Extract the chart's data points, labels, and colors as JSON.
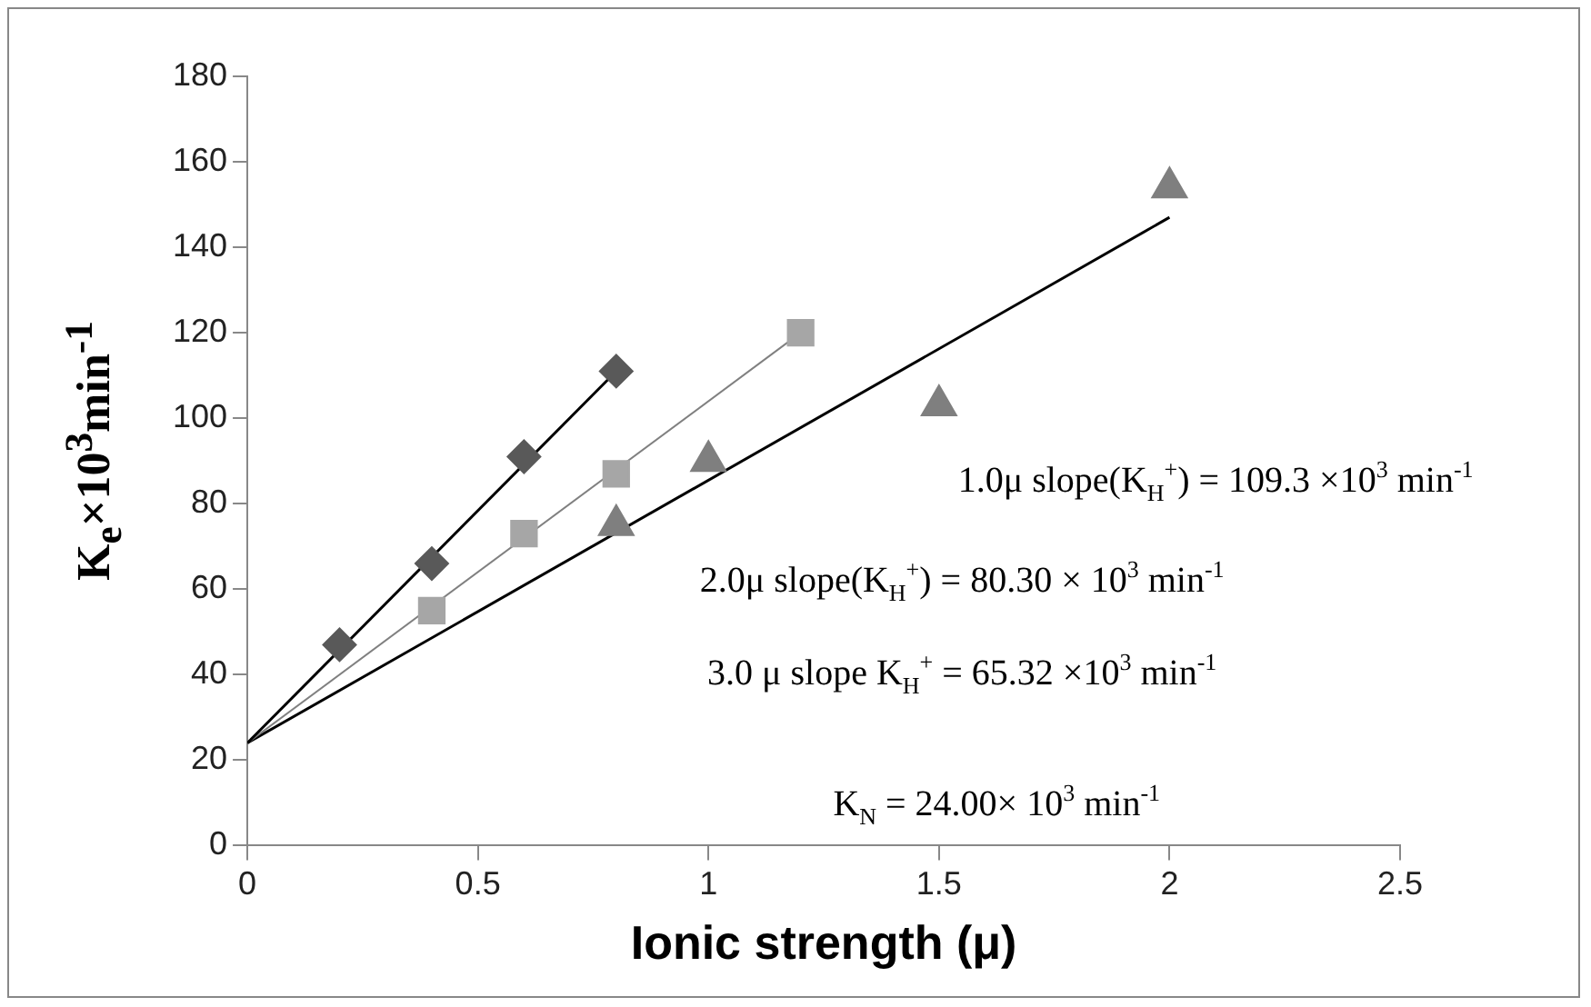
{
  "chart_data": {
    "type": "scatter",
    "xlabel": "Ionic strength (μ)",
    "ylabel": "K$_{e}$×10$^{3}$min$^{-1}$",
    "xlim": [
      0,
      2.5
    ],
    "xticks": [
      0,
      0.5,
      1,
      1.5,
      2,
      2.5
    ],
    "ylim": [
      0,
      180
    ],
    "yticks": [
      0,
      20,
      40,
      60,
      80,
      100,
      120,
      140,
      160,
      180
    ],
    "grid": false,
    "legend": false,
    "series": [
      {
        "type": "scatter",
        "marker": "diamond",
        "color": "#595959",
        "x": [
          0.2,
          0.4,
          0.6,
          0.8
        ],
        "values": [
          47,
          66,
          91,
          111
        ]
      },
      {
        "type": "scatter",
        "marker": "square",
        "color": "#a6a6a6",
        "x": [
          0.4,
          0.6,
          0.8,
          1.2
        ],
        "values": [
          55,
          73,
          87,
          120
        ]
      },
      {
        "type": "scatter",
        "marker": "triangle",
        "color": "#7f7f7f",
        "x": [
          0.8,
          1.0,
          1.5,
          2.0
        ],
        "values": [
          75,
          90,
          103,
          154
        ]
      },
      {
        "type": "line",
        "marker": "none",
        "color": "#000000",
        "x": [
          0,
          0.8
        ],
        "values": [
          24,
          111
        ]
      },
      {
        "type": "line",
        "marker": "none",
        "color": "#808080",
        "x": [
          0,
          1.2
        ],
        "values": [
          24,
          120
        ]
      },
      {
        "type": "line",
        "marker": "none",
        "color": "#000000",
        "x": [
          0,
          2
        ],
        "values": [
          24,
          147
        ]
      }
    ],
    "annotations": [
      "1.0μ slope(K$_{H}$$^{+}$) = 109.3 ×10$^{3}$ min$^{-1}$",
      "2.0μ slope(K$_{H}$$^{+}$) = 80.30 × 10$^{3}$ min$^{-1}$",
      "3.0 μ slope K$_{H}$$^{+}$ = 65.32 ×10$^{3}$ min$^{-1}$",
      "K$_{N}$ = 24.00× 10$^{3}$ min$^{-1}$"
    ]
  }
}
